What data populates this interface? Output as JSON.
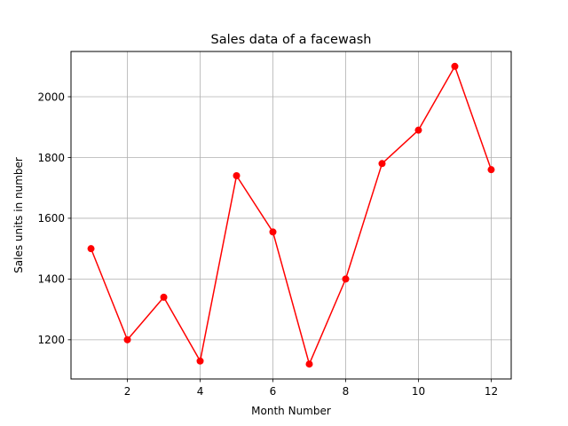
{
  "chart_data": {
    "type": "line",
    "title": "Sales data of a facewash",
    "xlabel": "Month Number",
    "ylabel": "Sales units in number",
    "x": [
      1,
      2,
      3,
      4,
      5,
      6,
      7,
      8,
      9,
      10,
      11,
      12
    ],
    "series": [
      {
        "values": [
          1500,
          1200,
          1340,
          1130,
          1740,
          1555,
          1120,
          1400,
          1780,
          1890,
          2100,
          1760
        ],
        "color": "#ff0000",
        "marker": "circle"
      }
    ],
    "xlim": [
      0.45,
      12.55
    ],
    "ylim": [
      1071,
      2149
    ],
    "xticks": [
      2,
      4,
      6,
      8,
      10,
      12
    ],
    "yticks": [
      1200,
      1400,
      1600,
      1800,
      2000
    ],
    "grid": true
  }
}
